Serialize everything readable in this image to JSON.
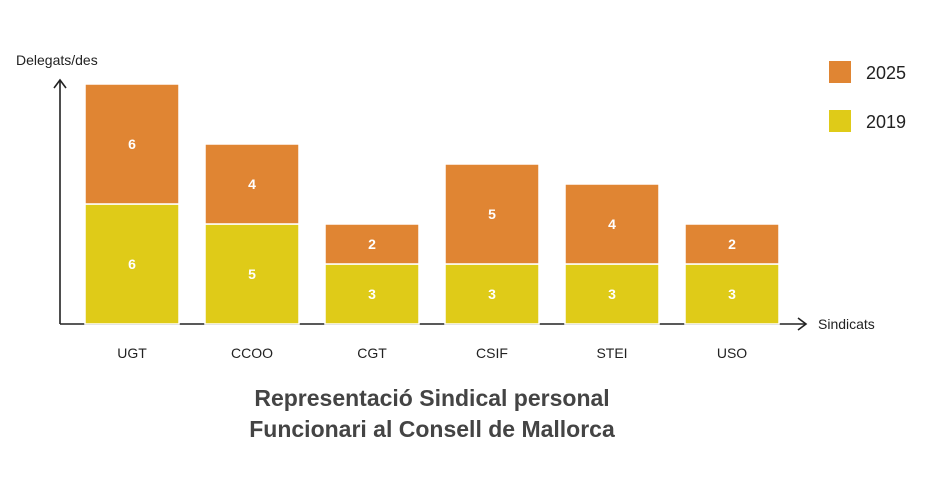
{
  "chart_data": {
    "type": "bar",
    "stacked": true,
    "title": "Representació Sindical personal Funcionari al Consell de Mallorca",
    "title_lines": [
      "Representació Sindical personal",
      "Funcionari al Consell de Mallorca"
    ],
    "xlabel": "Sindicats",
    "ylabel": "Delegats/des",
    "categories": [
      "UGT",
      "CCOO",
      "CGT",
      "CSIF",
      "STEI",
      "USO"
    ],
    "series": [
      {
        "name": "2019",
        "values": [
          6,
          5,
          3,
          3,
          3,
          3
        ],
        "color": "#dfcb18"
      },
      {
        "name": "2025",
        "values": [
          6,
          4,
          2,
          5,
          4,
          2
        ],
        "color": "#e08533"
      }
    ],
    "ylim": [
      0,
      12
    ],
    "grid": false,
    "legend": "top-right",
    "legend_order": [
      "2025",
      "2019"
    ]
  }
}
